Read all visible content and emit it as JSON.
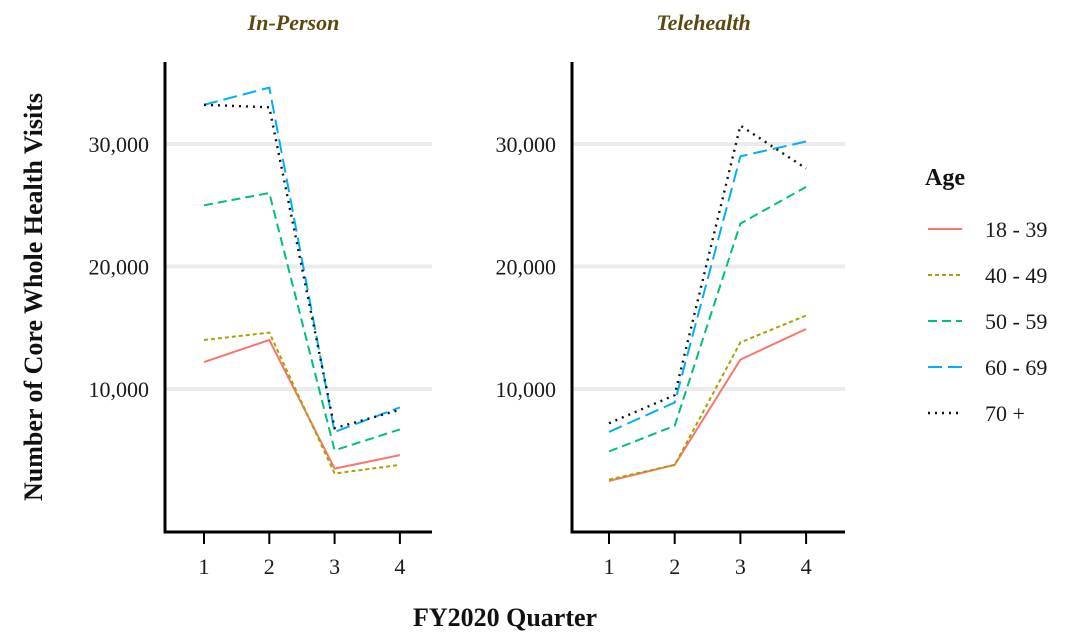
{
  "chart_data": {
    "type": "line",
    "xlabel": "FY2020 Quarter",
    "ylabel": "Number of Core Whole Health Visits",
    "x": [
      1,
      2,
      3,
      4
    ],
    "x_tick_labels": [
      "1",
      "2",
      "3",
      "4"
    ],
    "ylim": [
      0,
      37000
    ],
    "y_ticks": [
      10000,
      20000,
      30000
    ],
    "y_tick_labels": [
      "10,000",
      "20,000",
      "30,000"
    ],
    "grid": "horizontal",
    "legend": {
      "title": "Age",
      "placement": "right"
    },
    "series_styles": [
      {
        "name": "18 - 39",
        "color": "#f8766d",
        "dash": "solid"
      },
      {
        "name": "40 - 49",
        "color": "#a3a500",
        "dash": "dotted"
      },
      {
        "name": "50 - 59",
        "color": "#00bf7d",
        "dash": "dashed"
      },
      {
        "name": "60 - 69",
        "color": "#00b0f6",
        "dash": "longdash"
      },
      {
        "name": "70 +",
        "color": "#111111",
        "dash": "dots"
      }
    ],
    "panels": [
      {
        "title": "In-Person",
        "series": [
          {
            "name": "18 - 39",
            "values": [
              12200,
              14000,
              3500,
              4600
            ]
          },
          {
            "name": "40 - 49",
            "values": [
              14000,
              14600,
              3100,
              3800
            ]
          },
          {
            "name": "50 - 59",
            "values": [
              25000,
              26000,
              5000,
              6700
            ]
          },
          {
            "name": "60 - 69",
            "values": [
              33200,
              34600,
              6500,
              8500
            ]
          },
          {
            "name": "70 +",
            "values": [
              33200,
              33000,
              6800,
              8300
            ]
          }
        ]
      },
      {
        "title": "Telehealth",
        "series": [
          {
            "name": "18 - 39",
            "values": [
              2500,
              3800,
              12400,
              14900
            ]
          },
          {
            "name": "40 - 49",
            "values": [
              2600,
              3800,
              13800,
              16000
            ]
          },
          {
            "name": "50 - 59",
            "values": [
              4900,
              7000,
              23500,
              26500
            ]
          },
          {
            "name": "60 - 69",
            "values": [
              6500,
              8900,
              29000,
              30200
            ]
          },
          {
            "name": "70 +",
            "values": [
              7200,
              9500,
              31500,
              28000
            ]
          }
        ]
      }
    ]
  }
}
